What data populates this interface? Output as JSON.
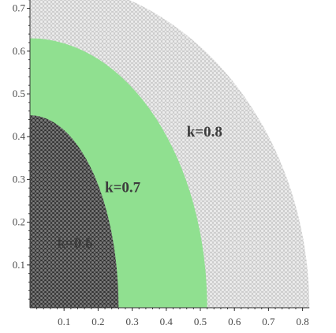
{
  "chart_data": {
    "type": "area",
    "title": "",
    "xlabel": "",
    "ylabel": "",
    "xlim": [
      0,
      0.82
    ],
    "ylim": [
      0,
      0.77
    ],
    "grid": false,
    "x_ticks": [
      "0.1",
      "0.2",
      "0.3",
      "0.4",
      "0.5",
      "0.6",
      "0.7",
      "0.8"
    ],
    "y_ticks": [
      "0.1",
      "0.2",
      "0.3",
      "0.4",
      "0.5",
      "0.6",
      "0.7"
    ],
    "regions": [
      {
        "label": "k=0.8",
        "x_intercept": 0.82,
        "y_intercept": 0.77,
        "color": "#e0e0e0",
        "pattern": "light-dots",
        "label_x": 0.46,
        "label_y": 0.4
      },
      {
        "label": "k=0.7",
        "x_intercept": 0.52,
        "y_intercept": 0.63,
        "color": "#90e090",
        "pattern": "solid",
        "label_x": 0.22,
        "label_y": 0.27
      },
      {
        "label": "k=0.6",
        "x_intercept": 0.26,
        "y_intercept": 0.45,
        "color": "#555555",
        "pattern": "dark-dots",
        "label_x": 0.08,
        "label_y": 0.14
      }
    ]
  }
}
